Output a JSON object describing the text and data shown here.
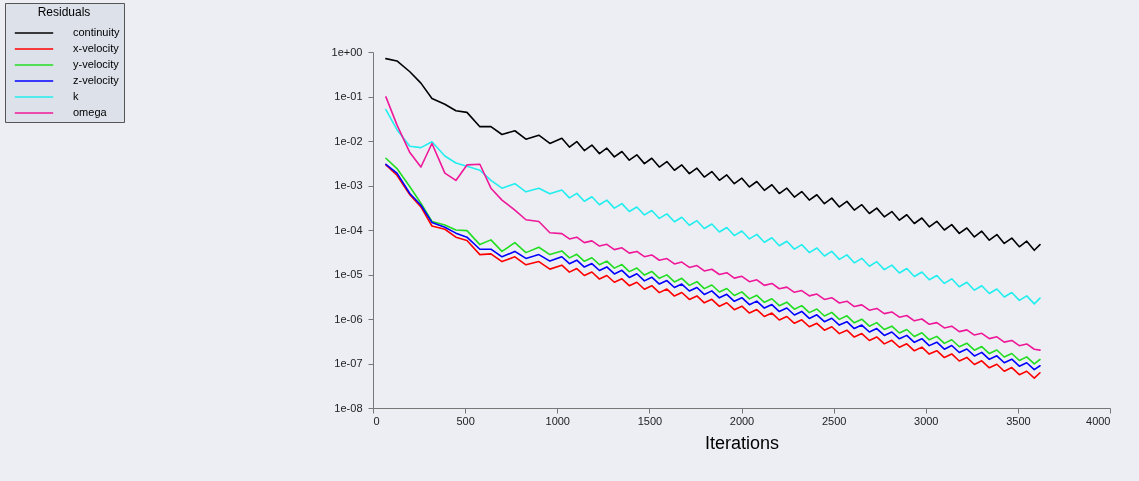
{
  "chart_data": {
    "type": "line",
    "xlabel": "Iterations",
    "legend_title": "Residuals",
    "legend": "top left",
    "log": "y",
    "xlim": [
      0,
      4000
    ],
    "xticks": [
      0,
      500,
      1000,
      1500,
      2000,
      2500,
      3000,
      3500,
      4000
    ],
    "ylim": [
      1e-08,
      1
    ],
    "yticks": [
      {
        "value": 1,
        "label": "1e+00"
      },
      {
        "value": 0.1,
        "label": "1e-01"
      },
      {
        "value": 0.01,
        "label": "1e-02"
      },
      {
        "value": 0.001,
        "label": "1e-03"
      },
      {
        "value": 0.0001,
        "label": "1e-04"
      },
      {
        "value": 1e-05,
        "label": "1e-05"
      },
      {
        "value": 1e-06,
        "label": "1e-06"
      },
      {
        "value": 1e-07,
        "label": "1e-07"
      },
      {
        "value": 1e-08,
        "label": "1e-08"
      }
    ],
    "x": [
      70,
      130,
      200,
      260,
      320,
      390,
      450,
      510,
      580,
      640,
      700,
      770,
      830,
      900,
      960,
      1025,
      1066,
      1106,
      1147,
      1188,
      1229,
      1269,
      1310,
      1351,
      1391,
      1432,
      1473,
      1513,
      1554,
      1595,
      1636,
      1676,
      1717,
      1758,
      1798,
      1839,
      1880,
      1920,
      1961,
      2002,
      2043,
      2083,
      2124,
      2165,
      2205,
      2246,
      2287,
      2327,
      2368,
      2409,
      2450,
      2490,
      2531,
      2572,
      2612,
      2653,
      2694,
      2734,
      2775,
      2816,
      2857,
      2897,
      2938,
      2979,
      3019,
      3060,
      3101,
      3141,
      3182,
      3223,
      3264,
      3304,
      3345,
      3386,
      3426,
      3467,
      3508,
      3548,
      3589,
      3620
    ],
    "series": [
      {
        "name": "continuity",
        "color": "#000000",
        "values": [
          0.71,
          0.63,
          0.36,
          0.2,
          0.09,
          0.067,
          0.048,
          0.044,
          0.021,
          0.021,
          0.014,
          0.017,
          0.011,
          0.0135,
          0.0088,
          0.0115,
          0.0073,
          0.0097,
          0.0061,
          0.0081,
          0.0052,
          0.0069,
          0.0044,
          0.0058,
          0.0037,
          0.0049,
          0.0031,
          0.0041,
          0.0026,
          0.00345,
          0.0022,
          0.0029,
          0.00185,
          0.00245,
          0.00155,
          0.00206,
          0.00131,
          0.00173,
          0.0011,
          0.00146,
          0.00093,
          0.00123,
          0.00078,
          0.00104,
          0.00066,
          0.00087,
          0.00055,
          0.00073,
          0.00047,
          0.00062,
          0.00039,
          0.00052,
          0.00033,
          0.00044,
          0.00028,
          0.00037,
          0.000235,
          0.00031,
          0.000198,
          0.00026,
          0.000166,
          0.00022,
          0.00014,
          0.000186,
          0.000118,
          0.000157,
          0.0001,
          0.000132,
          8.4e-05,
          0.000111,
          7e-05,
          9.4e-05,
          5.9e-05,
          7.9e-05,
          5e-05,
          6.6e-05,
          4.2e-05,
          5.6e-05,
          3.5e-05,
          4.7e-05
        ]
      },
      {
        "name": "x-velocity",
        "color": "#ff0000",
        "values": [
          0.0029,
          0.0017,
          0.00062,
          0.00033,
          0.000123,
          0.000104,
          6.9e-05,
          5.8e-05,
          2.8e-05,
          2.9e-05,
          1.95e-05,
          2.5e-05,
          1.65e-05,
          1.95e-05,
          1.32e-05,
          1.62e-05,
          1.13e-05,
          1.36e-05,
          9.5e-06,
          1.14e-05,
          7.9e-06,
          9.5e-06,
          6.7e-06,
          8e-06,
          5.6e-06,
          6.7e-06,
          4.67e-06,
          5.6e-06,
          3.91e-06,
          4.7e-06,
          3.28e-06,
          3.94e-06,
          2.75e-06,
          3.3e-06,
          2.31e-06,
          2.77e-06,
          1.93e-06,
          2.32e-06,
          1.62e-06,
          1.94e-06,
          1.36e-06,
          1.63e-06,
          1.14e-06,
          1.36e-06,
          9.5e-07,
          1.14e-06,
          8e-07,
          9.6e-07,
          6.7e-07,
          8e-07,
          5.6e-07,
          6.7e-07,
          4.69e-07,
          5.6e-07,
          3.93e-07,
          4.71e-07,
          3.29e-07,
          3.95e-07,
          2.76e-07,
          3.32e-07,
          2.32e-07,
          2.77e-07,
          1.93e-07,
          2.33e-07,
          1.63e-07,
          1.94e-07,
          1.36e-07,
          1.64e-07,
          1.14e-07,
          1.37e-07,
          9.5e-08,
          1.15e-07,
          8e-08,
          9.6e-08,
          6.7e-08,
          8.1e-08,
          5.6e-08,
          6.7e-08,
          4.7e-08,
          6.2e-08
        ]
      },
      {
        "name": "y-velocity",
        "color": "#22dd22",
        "values": [
          0.0041,
          0.0024,
          0.00094,
          0.0004,
          0.000155,
          0.000129,
          0.0001,
          9.7e-05,
          4.7e-05,
          6e-05,
          3.3e-05,
          5.2e-05,
          3.1e-05,
          4.1e-05,
          2.8e-05,
          3.39e-05,
          2.36e-05,
          2.84e-05,
          1.98e-05,
          2.38e-05,
          1.66e-05,
          2e-05,
          1.39e-05,
          1.67e-05,
          1.16e-05,
          1.4e-05,
          9.7e-06,
          1.17e-05,
          8.2e-06,
          9.8e-06,
          6.8e-06,
          8.2e-06,
          5.7e-06,
          6.9e-06,
          4.81e-06,
          5.8e-06,
          4.04e-06,
          4.85e-06,
          3.37e-06,
          4.07e-06,
          2.83e-06,
          3.41e-06,
          2.37e-06,
          2.85e-06,
          1.99e-06,
          2.39e-06,
          1.66e-06,
          2e-06,
          1.39e-06,
          1.68e-06,
          1.17e-06,
          1.41e-06,
          9.8e-07,
          1.18e-06,
          8.2e-07,
          9.9e-07,
          6.9e-07,
          8.3e-07,
          5.8e-07,
          6.9e-07,
          4.84e-07,
          5.8e-07,
          4.04e-07,
          4.9e-07,
          3.4e-07,
          4.07e-07,
          2.83e-07,
          3.42e-07,
          2.38e-07,
          2.86e-07,
          1.99e-07,
          2.4e-07,
          1.67e-07,
          2.01e-07,
          1.4e-07,
          1.68e-07,
          1.17e-07,
          1.41e-07,
          9.8e-08,
          1.23e-07
        ]
      },
      {
        "name": "z-velocity",
        "color": "#0000ff",
        "values": [
          0.003,
          0.0019,
          0.00066,
          0.00036,
          0.000148,
          0.000115,
          8.5e-05,
          6.9e-05,
          3.7e-05,
          3.7e-05,
          2.5e-05,
          3.3e-05,
          2.3e-05,
          2.8e-05,
          2e-05,
          2.51e-05,
          1.75e-05,
          2.1e-05,
          1.47e-05,
          1.76e-05,
          1.23e-05,
          1.48e-05,
          1.03e-05,
          1.24e-05,
          8.6e-06,
          1.04e-05,
          7.2e-06,
          8.7e-06,
          6.1e-06,
          7.3e-06,
          5.1e-06,
          6.1e-06,
          4.25e-06,
          5.1e-06,
          3.57e-06,
          4.29e-06,
          2.99e-06,
          3.59e-06,
          2.5e-06,
          3.01e-06,
          2.1e-06,
          2.52e-06,
          1.76e-06,
          2.11e-06,
          1.47e-06,
          1.77e-06,
          1.23e-06,
          1.48e-06,
          1.03e-06,
          1.24e-06,
          8.7e-07,
          1.04e-06,
          7.3e-07,
          8.7e-07,
          6.1e-07,
          7.3e-07,
          5.1e-07,
          6.1e-07,
          4.27e-07,
          5.1e-07,
          3.59e-07,
          4.29e-07,
          2.99e-07,
          3.61e-07,
          2.52e-07,
          3.01e-07,
          2.1e-07,
          2.54e-07,
          1.77e-07,
          2.12e-07,
          1.48e-07,
          1.78e-07,
          1.24e-07,
          1.49e-07,
          1.04e-07,
          1.25e-07,
          8.7e-08,
          1.04e-07,
          7.3e-08,
          8.9e-08
        ]
      },
      {
        "name": "k",
        "color": "#22eeee",
        "values": [
          0.051,
          0.018,
          0.0076,
          0.0071,
          0.0096,
          0.0046,
          0.0032,
          0.0027,
          0.0022,
          0.0013,
          0.00087,
          0.0011,
          0.00072,
          0.00087,
          0.00065,
          0.000794,
          0.000527,
          0.000665,
          0.000442,
          0.000557,
          0.00037,
          0.000468,
          0.00031,
          0.000392,
          0.00026,
          0.000328,
          0.000218,
          0.000275,
          0.000182,
          0.00023,
          0.000153,
          0.000193,
          0.000128,
          0.000162,
          0.000108,
          0.000136,
          9e-05,
          0.000114,
          7.5e-05,
          9.5e-05,
          6.3e-05,
          7.98e-05,
          5.3e-05,
          6.68e-05,
          4.44e-05,
          5.6e-05,
          3.72e-05,
          4.69e-05,
          3.11e-05,
          3.93e-05,
          2.61e-05,
          3.3e-05,
          2.19e-05,
          2.76e-05,
          1.83e-05,
          2.31e-05,
          1.53e-05,
          1.94e-05,
          1.29e-05,
          1.62e-05,
          1.08e-05,
          1.36e-05,
          9e-06,
          1.14e-05,
          7.6e-06,
          9.5e-06,
          6.3e-06,
          8e-06,
          5.3e-06,
          6.7e-06,
          4.44e-06,
          5.6e-06,
          3.73e-06,
          4.71e-06,
          3.13e-06,
          3.94e-06,
          2.62e-06,
          3.3e-06,
          2.19e-06,
          2.95e-06
        ]
      },
      {
        "name": "omega",
        "color": "#ee1899",
        "values": [
          0.098,
          0.023,
          0.0055,
          0.0026,
          0.0088,
          0.0019,
          0.0013,
          0.0029,
          0.003,
          0.00087,
          0.00047,
          0.00028,
          0.00017,
          0.000155,
          8.7e-05,
          8.3e-05,
          6.3e-05,
          6.9e-05,
          5.2e-05,
          5.7e-05,
          4.36e-05,
          4.77e-05,
          3.62e-05,
          3.98e-05,
          3.02e-05,
          3.3e-05,
          2.51e-05,
          2.75e-05,
          2.09e-05,
          2.28e-05,
          1.73e-05,
          1.9e-05,
          1.44e-05,
          1.59e-05,
          1.2e-05,
          1.31e-05,
          1e-05,
          1.1e-05,
          8.3e-06,
          9.1e-06,
          6.9e-06,
          7.6e-06,
          5.7e-06,
          6.3e-06,
          4.78e-06,
          5.2e-06,
          3.98e-06,
          4.36e-06,
          3.31e-06,
          3.63e-06,
          2.75e-06,
          3.01e-06,
          2.29e-06,
          2.51e-06,
          1.9e-06,
          2.08e-06,
          1.58e-06,
          1.73e-06,
          1.32e-06,
          1.44e-06,
          1.1e-06,
          1.2e-06,
          9.1e-07,
          1e-06,
          7.6e-07,
          8.3e-07,
          6.3e-07,
          6.9e-07,
          5.2e-07,
          5.7e-07,
          4.36e-07,
          4.77e-07,
          3.62e-07,
          3.98e-07,
          3.02e-07,
          3.3e-07,
          2.51e-07,
          2.75e-07,
          2.09e-07,
          2e-07
        ]
      }
    ]
  }
}
